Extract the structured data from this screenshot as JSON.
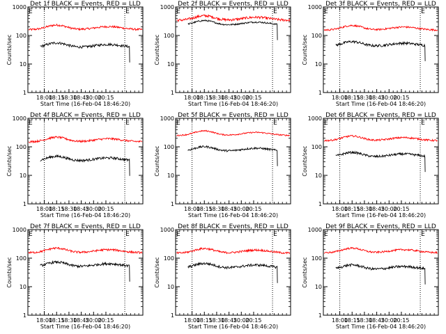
{
  "chart_data": {
    "type": "line",
    "scale_y": "log",
    "ylim": [
      1,
      1000
    ],
    "y_ticks": [
      "1",
      "10",
      "100",
      "1000"
    ],
    "x_ticks": [
      "18:00",
      "18:15",
      "18:30",
      "18:45",
      "20:00",
      "20:15"
    ],
    "x_range_minutes": [
      -20,
      120
    ],
    "ylabel": "Counts/sec",
    "xlabel": "Start Time (16-Feb-04 18:46:20)",
    "marker_label": "E",
    "dotted_lines_minutes": [
      0,
      98
    ],
    "colors": {
      "events": "#000000",
      "lld": "#ff0000",
      "axes": "#000000"
    },
    "grid": false,
    "panels": [
      {
        "title": "Det 1f BLACK = Events, RED = LLD",
        "lld_base": 160,
        "events_base": 38,
        "lld_noise": 0.08,
        "events_noise": 0.1
      },
      {
        "title": "Det 2f BLACK = Events, RED = LLD",
        "lld_base": 340,
        "events_base": 230,
        "lld_noise": 0.1,
        "events_noise": 0.06
      },
      {
        "title": "Det 3f BLACK = Events, RED = LLD",
        "lld_base": 155,
        "events_base": 42,
        "lld_noise": 0.07,
        "events_noise": 0.1
      },
      {
        "title": "Det 4f BLACK = Events, RED = LLD",
        "lld_base": 150,
        "events_base": 32,
        "lld_noise": 0.08,
        "events_noise": 0.1
      },
      {
        "title": "Det 5f BLACK = Events, RED = LLD",
        "lld_base": 250,
        "events_base": 70,
        "lld_noise": 0.05,
        "events_noise": 0.08
      },
      {
        "title": "Det 6f BLACK = Events, RED = LLD",
        "lld_base": 165,
        "events_base": 44,
        "lld_noise": 0.07,
        "events_noise": 0.09
      },
      {
        "title": "Det 7f BLACK = Events, RED = LLD",
        "lld_base": 155,
        "events_base": 50,
        "lld_noise": 0.08,
        "events_noise": 0.1
      },
      {
        "title": "Det 8f BLACK = Events, RED = LLD",
        "lld_base": 150,
        "events_base": 45,
        "lld_noise": 0.08,
        "events_noise": 0.1
      },
      {
        "title": "Det 9f BLACK = Events, RED = LLD",
        "lld_base": 155,
        "events_base": 40,
        "lld_noise": 0.07,
        "events_noise": 0.1
      }
    ]
  }
}
